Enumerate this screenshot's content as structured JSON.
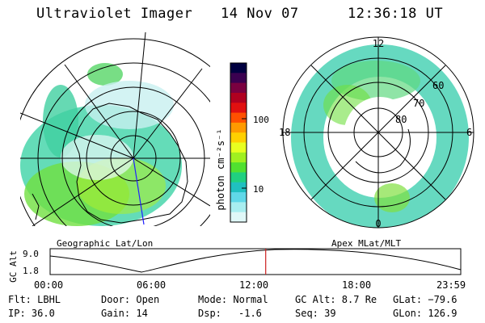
{
  "header": {
    "instrument": "Ultraviolet Imager",
    "date": "14 Nov 07",
    "time": "12:36:18 UT"
  },
  "left_panel": {
    "caption": "Geographic Lat/Lon"
  },
  "colorbar": {
    "unit_label": "photon cm⁻²s⁻¹",
    "ticks": [
      "100",
      "10"
    ],
    "colors": [
      "#000040",
      "#3a0050",
      "#7a0040",
      "#b00020",
      "#e01010",
      "#ff5000",
      "#ff9a00",
      "#ffd000",
      "#e8ff20",
      "#a0f020",
      "#50e030",
      "#20d080",
      "#20c0c0",
      "#60d8e8",
      "#a8eef0",
      "#e0f8f8"
    ]
  },
  "right_panel": {
    "caption": "Apex MLat/MLT",
    "mlt_labels": {
      "top": "12",
      "left": "18",
      "right": "6",
      "bottom": "0"
    },
    "lat_labels": [
      "60",
      "70",
      "80"
    ]
  },
  "timeline": {
    "ylabel": "GC Alt",
    "y_ticks": [
      "9.0",
      "1.8"
    ],
    "x_ticks": [
      "00:00",
      "06:00",
      "12:00",
      "18:00",
      "23:59"
    ],
    "current_fraction": 0.525
  },
  "info": {
    "flt": "Flt: LBHL",
    "ip": "IP: 36.0",
    "door": "Door: Open",
    "gain": "Gain: 14",
    "mode": "Mode: Normal",
    "dsp_label": "Dsp:",
    "dsp_value": "-1.6",
    "gcalt": "GC Alt: 8.7 Re",
    "seq": "Seq: 39",
    "glat": "GLat: −79.6",
    "glon": "GLon: 126.9"
  }
}
